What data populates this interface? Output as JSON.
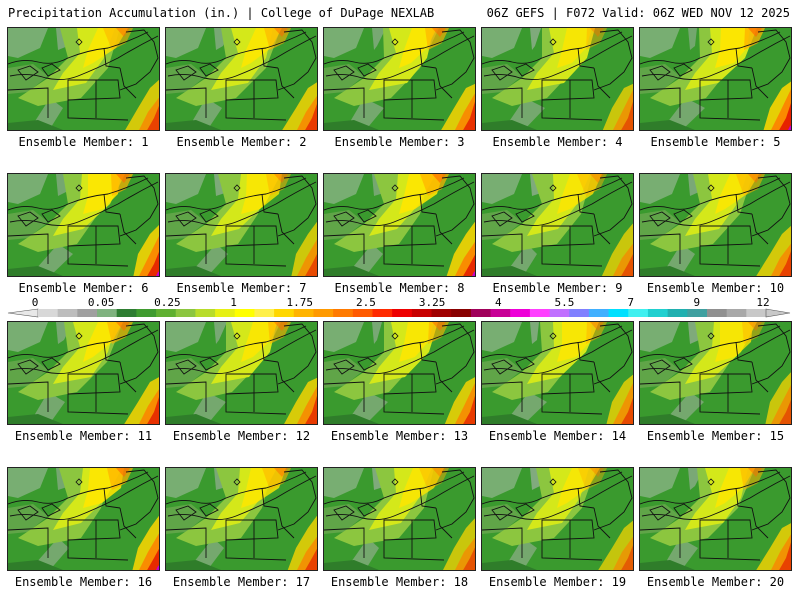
{
  "header": {
    "left": "Precipitation Accumulation (in.) | College of DuPage NEXLAB",
    "right": "06Z GEFS | F072 Valid: 06Z WED NOV 12 2025"
  },
  "panels": [
    {
      "label": "Ensemble Member: 1",
      "intensity": 0.55
    },
    {
      "label": "Ensemble Member: 2",
      "intensity": 0.6
    },
    {
      "label": "Ensemble Member: 3",
      "intensity": 0.65
    },
    {
      "label": "Ensemble Member: 4",
      "intensity": 0.45
    },
    {
      "label": "Ensemble Member: 5",
      "intensity": 0.75
    },
    {
      "label": "Ensemble Member: 6",
      "intensity": 0.7
    },
    {
      "label": "Ensemble Member: 7",
      "intensity": 0.5
    },
    {
      "label": "Ensemble Member: 8",
      "intensity": 0.7
    },
    {
      "label": "Ensemble Member: 9",
      "intensity": 0.45
    },
    {
      "label": "Ensemble Member: 10",
      "intensity": 0.55
    },
    {
      "label": "Ensemble Member: 11",
      "intensity": 0.65
    },
    {
      "label": "Ensemble Member: 12",
      "intensity": 0.6
    },
    {
      "label": "Ensemble Member: 13",
      "intensity": 0.6
    },
    {
      "label": "Ensemble Member: 14",
      "intensity": 0.5
    },
    {
      "label": "Ensemble Member: 15",
      "intensity": 0.45
    },
    {
      "label": "Ensemble Member: 16",
      "intensity": 0.7
    },
    {
      "label": "Ensemble Member: 17",
      "intensity": 0.55
    },
    {
      "label": "Ensemble Member: 18",
      "intensity": 0.45
    },
    {
      "label": "Ensemble Member: 19",
      "intensity": 0.4
    },
    {
      "label": "Ensemble Member: 20",
      "intensity": 0.55
    }
  ],
  "colorbar": {
    "ticks": [
      "0",
      "0.05",
      "0.25",
      "1",
      "1.75",
      "2.5",
      "3.25",
      "4",
      "5.5",
      "7",
      "9",
      "12"
    ],
    "colors": [
      "#d8d8d8",
      "#bdbdbd",
      "#a0a0a0",
      "#7fb27f",
      "#2e7d32",
      "#3f9b2f",
      "#5fb030",
      "#8cc63f",
      "#b8dc2a",
      "#e6f014",
      "#ffff00",
      "#fff04a",
      "#ffd700",
      "#ffb400",
      "#ff9a00",
      "#ff7a00",
      "#ff5a00",
      "#ff2a00",
      "#ee0000",
      "#c80000",
      "#a00000",
      "#880000",
      "#a0005a",
      "#c80096",
      "#ee00d8",
      "#ff40ff",
      "#c070ff",
      "#8080ff",
      "#40b0ff",
      "#00e0ff",
      "#40f0f0",
      "#20d0d0",
      "#20b0b0",
      "#40a0a0",
      "#909090",
      "#a8a8a8",
      "#c8c8c8"
    ]
  }
}
